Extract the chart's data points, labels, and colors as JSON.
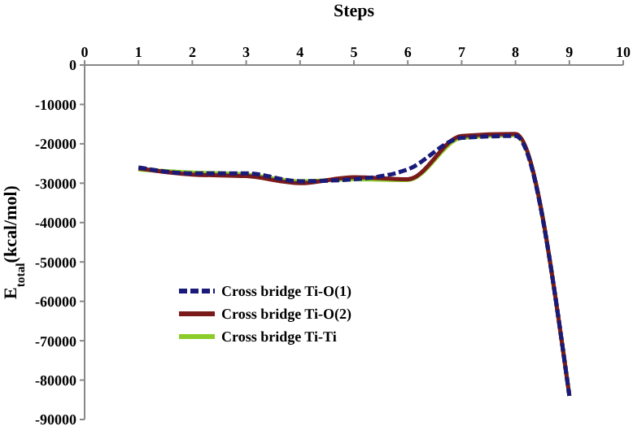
{
  "chart_data": {
    "type": "line",
    "xlabel": "Steps",
    "ylabel": "E$_{total}$(kcal/mol)",
    "x": [
      1,
      2,
      3,
      4,
      5,
      6,
      7,
      8,
      9
    ],
    "series": [
      {
        "name": "Cross bridge Ti-O(1)",
        "color": "#1a1a7a",
        "line_style": "dashed",
        "values": [
          -26000,
          -27500,
          -27500,
          -29500,
          -29000,
          -26500,
          -18500,
          -18000,
          -84000
        ]
      },
      {
        "name": "Cross bridge Ti-O(2)",
        "color": "#7a1a1a",
        "values": [
          -26200,
          -27800,
          -28200,
          -30000,
          -28500,
          -29000,
          -18000,
          -17500,
          -84000
        ]
      },
      {
        "name": "Cross bridge Ti-Ti",
        "color": "#8ccc2a",
        "values": [
          -26500,
          -27300,
          -27800,
          -29500,
          -29000,
          -29200,
          -18500,
          -17800,
          -84000
        ]
      }
    ],
    "xlim": [
      0,
      10
    ],
    "xticks": [
      0,
      1,
      2,
      3,
      4,
      5,
      6,
      7,
      8,
      9,
      10
    ],
    "ylim": [
      -90000,
      0
    ],
    "yticks": [
      -90000,
      -80000,
      -70000,
      -60000,
      -50000,
      -40000,
      -30000,
      -20000,
      -10000,
      0
    ],
    "grid": false,
    "legend": "left",
    "marker": "none",
    "line_style": "solid"
  }
}
